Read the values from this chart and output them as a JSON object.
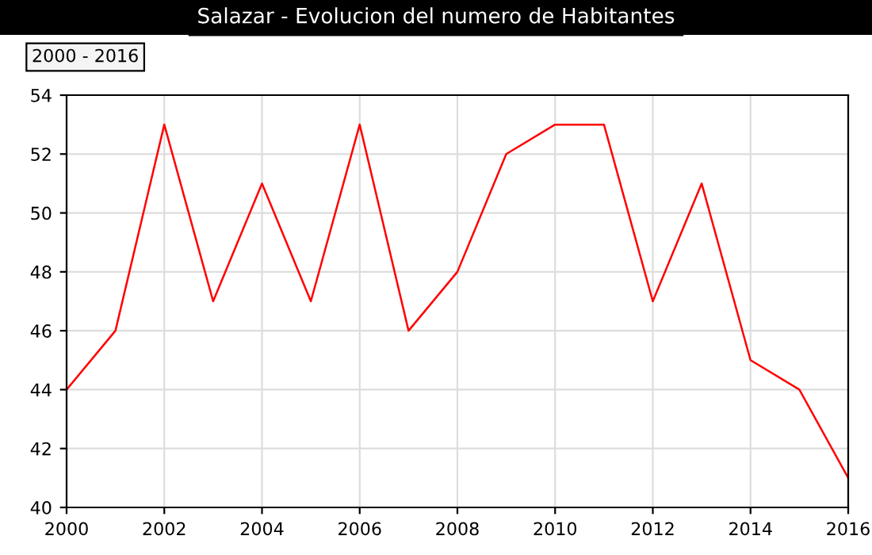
{
  "chart_data": {
    "type": "line",
    "title": "Salazar - Evolucion del numero de Habitantes",
    "annotations": [
      "2000 - 2016"
    ],
    "x": [
      2000,
      2001,
      2002,
      2003,
      2004,
      2005,
      2006,
      2007,
      2008,
      2009,
      2010,
      2011,
      2012,
      2013,
      2014,
      2015,
      2016
    ],
    "series": [
      {
        "color": "#ff0000",
        "values": [
          44,
          46,
          53,
          47,
          51,
          47,
          53,
          46,
          48,
          52,
          53,
          53,
          47,
          51,
          45,
          44,
          41
        ]
      }
    ],
    "xlim": [
      2000,
      2016
    ],
    "xticks": [
      2000,
      2002,
      2004,
      2006,
      2008,
      2010,
      2012,
      2014,
      2016
    ],
    "ylim": [
      40,
      54
    ],
    "yticks": [
      40,
      42,
      44,
      46,
      48,
      50,
      52,
      54
    ],
    "grid": true,
    "legend": false
  }
}
